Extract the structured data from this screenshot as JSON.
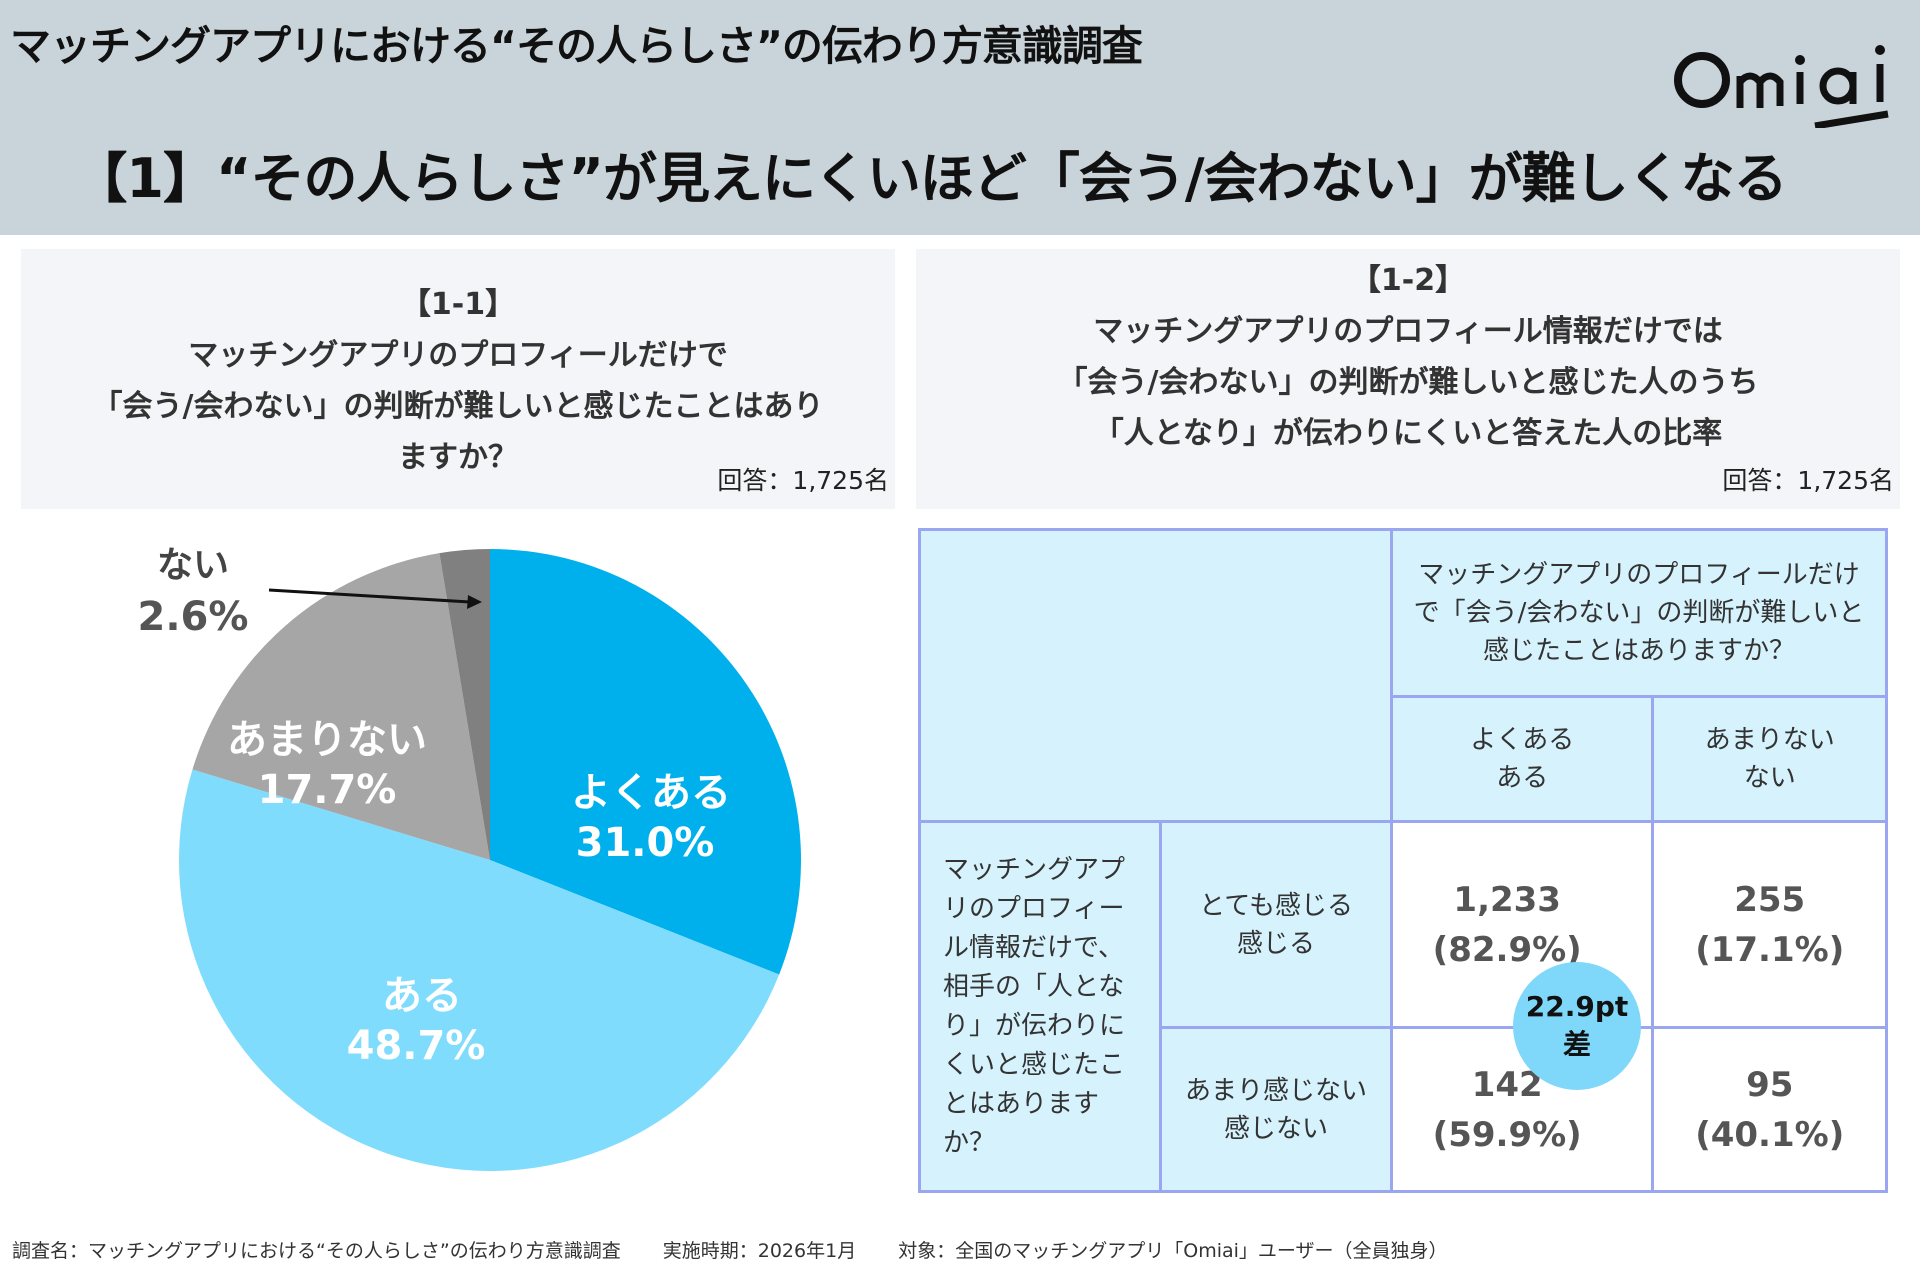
{
  "header": {
    "title": "マッチングアプリにおける“その人らしさ”の伝わり方意識調査",
    "subtitle": "【1】“その人らしさ”が見えにくいほど「会う/会わない」が難しくなる",
    "logo": "Omiai"
  },
  "left_panel": {
    "label": "【1-1】",
    "question_lines": [
      "マッチングアプリのプロフィールだけで",
      "「会う/会わない」の判断が難しいと感じたことはあり",
      "ますか？"
    ],
    "respondents": "回答：1,725名"
  },
  "right_panel": {
    "label": "【1-2】",
    "title_lines": [
      "マッチングアプリのプロフィール情報だけでは",
      "「会う/会わない」の判断が難しいと感じた人のうち",
      "「人となり」が伝わりにくいと答えた人の比率"
    ],
    "respondents": "回答：1,725名"
  },
  "chart_data": [
    {
      "type": "pie",
      "start": "top, clockwise",
      "slices": [
        {
          "label": "よくある",
          "value": 31.0,
          "display": "31.0%",
          "color": "#00b0ec"
        },
        {
          "label": "ある",
          "value": 48.7,
          "display": "48.7%",
          "color": "#80dcfc"
        },
        {
          "label": "あまりない",
          "value": 17.7,
          "display": "17.7%",
          "color": "#a6a6a6"
        },
        {
          "label": "ない",
          "value": 2.6,
          "display": "2.6%",
          "color": "#808080"
        }
      ]
    },
    {
      "type": "table",
      "column_header": "マッチングアプリのプロフィールだけで「会う/会わない」の判断が難しいと感じたことはありますか？",
      "columns": [
        [
          "よくある",
          "ある"
        ],
        [
          "あまりない",
          "ない"
        ]
      ],
      "row_header": "マッチングアプリのプロフィール情報だけで、相手の「人となり」が伝わりにくいと感じたことはありますか？",
      "rows": [
        {
          "label": [
            "とても感じる",
            "感じる"
          ],
          "cells": [
            {
              "count": "1,233",
              "pct": "(82.9%)"
            },
            {
              "count": "255",
              "pct": "(17.1%)"
            }
          ]
        },
        {
          "label": [
            "あまり感じない",
            "感じない"
          ],
          "cells": [
            {
              "count": "142",
              "pct": "(59.9%)"
            },
            {
              "count": "95",
              "pct": "(40.1%)"
            }
          ]
        }
      ],
      "difference": {
        "value": "22.9pt",
        "suffix": "差"
      }
    }
  ],
  "footer": {
    "survey": "調査名：マッチングアプリにおける“その人らしさ”の伝わり方意識調査",
    "period": "実施時期：2026年1月",
    "target": "対象：全国のマッチングアプリ「Omiai」ユーザー（全員独身）"
  }
}
